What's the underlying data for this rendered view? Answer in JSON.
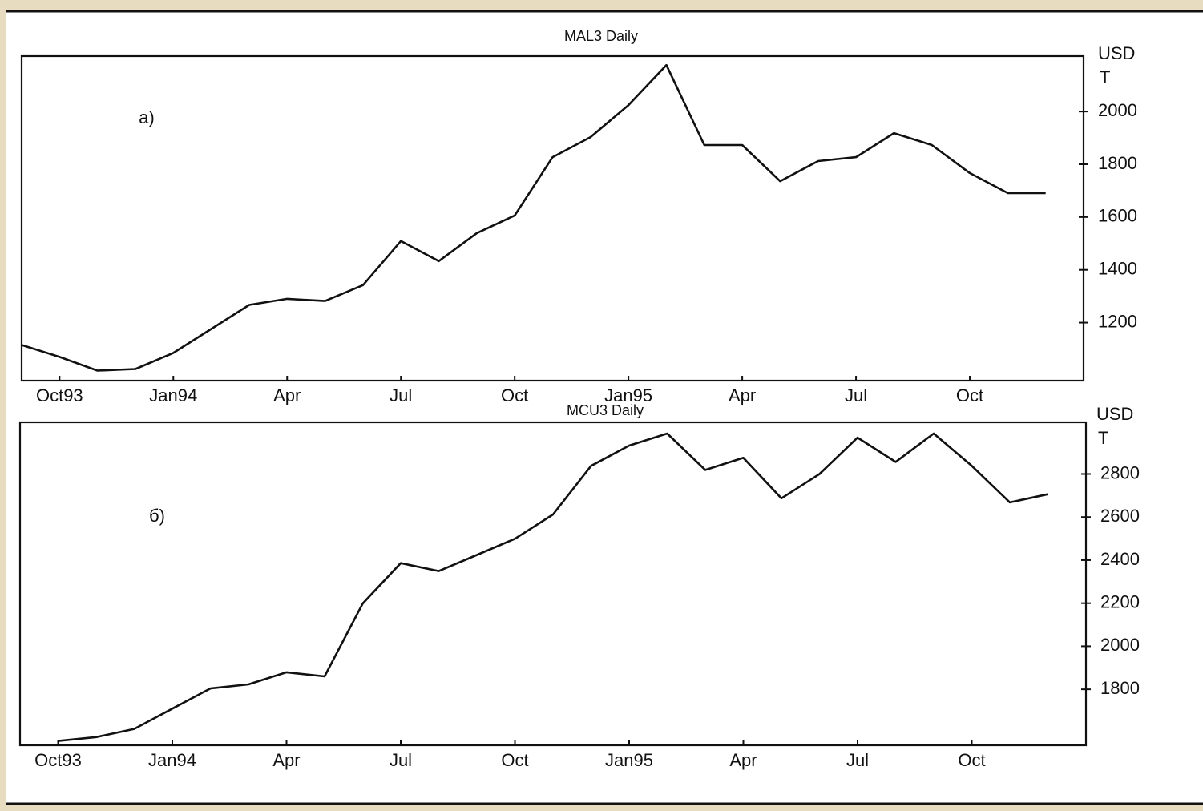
{
  "chart_data": [
    {
      "type": "line",
      "title": "MAL3 Daily",
      "annotation": "a)",
      "ylabel_lines": [
        "USD",
        "T"
      ],
      "x": [
        "1993-09",
        "1993-10",
        "1993-11",
        "1993-12",
        "1994-01",
        "1994-02",
        "1994-03",
        "1994-04",
        "1994-05",
        "1994-06",
        "1994-07",
        "1994-08",
        "1994-09",
        "1994-10",
        "1994-11",
        "1994-12",
        "1995-01",
        "1995-02",
        "1995-03",
        "1995-04",
        "1995-05",
        "1995-06",
        "1995-07",
        "1995-08",
        "1995-09",
        "1995-10",
        "1995-11",
        "1995-12"
      ],
      "series": [
        {
          "name": "MAL3",
          "color": "#111111",
          "values": [
            1115,
            1070,
            1018,
            1024,
            1085,
            1176,
            1267,
            1290,
            1282,
            1342,
            1509,
            1433,
            1539,
            1606,
            1827,
            1903,
            2024,
            2176,
            1873,
            1873,
            1736,
            1812,
            1827,
            1918,
            1873,
            1767,
            1691,
            1691
          ]
        }
      ],
      "xlim": [
        "1993-09",
        "1996-01"
      ],
      "xticks": [
        {
          "value": "1993-10",
          "label": "Oct93"
        },
        {
          "value": "1994-01",
          "label": "Jan94"
        },
        {
          "value": "1994-04",
          "label": "Apr"
        },
        {
          "value": "1994-07",
          "label": "Jul"
        },
        {
          "value": "1994-10",
          "label": "Oct"
        },
        {
          "value": "1995-01",
          "label": "Jan95"
        },
        {
          "value": "1995-04",
          "label": "Apr"
        },
        {
          "value": "1995-07",
          "label": "Jul"
        },
        {
          "value": "1995-10",
          "label": "Oct"
        }
      ],
      "ylim": [
        980,
        2210
      ],
      "yticks": [
        1200,
        1400,
        1600,
        1800,
        2000
      ]
    },
    {
      "type": "line",
      "title": "MCU3 Daily",
      "annotation": "б)",
      "ylabel_lines": [
        "USD",
        "T"
      ],
      "x": [
        "1993-10",
        "1993-11",
        "1993-12",
        "1994-01",
        "1994-02",
        "1994-03",
        "1994-04",
        "1994-05",
        "1994-06",
        "1994-07",
        "1994-08",
        "1994-09",
        "1994-10",
        "1994-11",
        "1994-12",
        "1995-01",
        "1995-02",
        "1995-03",
        "1995-04",
        "1995-05",
        "1995-06",
        "1995-07",
        "1995-08",
        "1995-09",
        "1995-10",
        "1995-11",
        "1995-12"
      ],
      "series": [
        {
          "name": "MCU3",
          "color": "#111111",
          "values": [
            1560,
            1578,
            1616,
            1710,
            1804,
            1823,
            1879,
            1860,
            2198,
            2386,
            2349,
            2424,
            2499,
            2612,
            2838,
            2932,
            2988,
            2819,
            2875,
            2687,
            2800,
            2969,
            2856,
            2988,
            2838,
            2668,
            2706
          ]
        }
      ],
      "xlim": [
        "1993-09",
        "1996-01"
      ],
      "xticks": [
        {
          "value": "1993-10",
          "label": "Oct93"
        },
        {
          "value": "1994-01",
          "label": "Jan94"
        },
        {
          "value": "1994-04",
          "label": "Apr"
        },
        {
          "value": "1994-07",
          "label": "Jul"
        },
        {
          "value": "1994-10",
          "label": "Oct"
        },
        {
          "value": "1995-01",
          "label": "Jan95"
        },
        {
          "value": "1995-04",
          "label": "Apr"
        },
        {
          "value": "1995-07",
          "label": "Jul"
        },
        {
          "value": "1995-10",
          "label": "Oct"
        }
      ],
      "ylim": [
        1540,
        3040
      ],
      "yticks": [
        1800,
        2000,
        2200,
        2400,
        2600,
        2800
      ]
    }
  ]
}
